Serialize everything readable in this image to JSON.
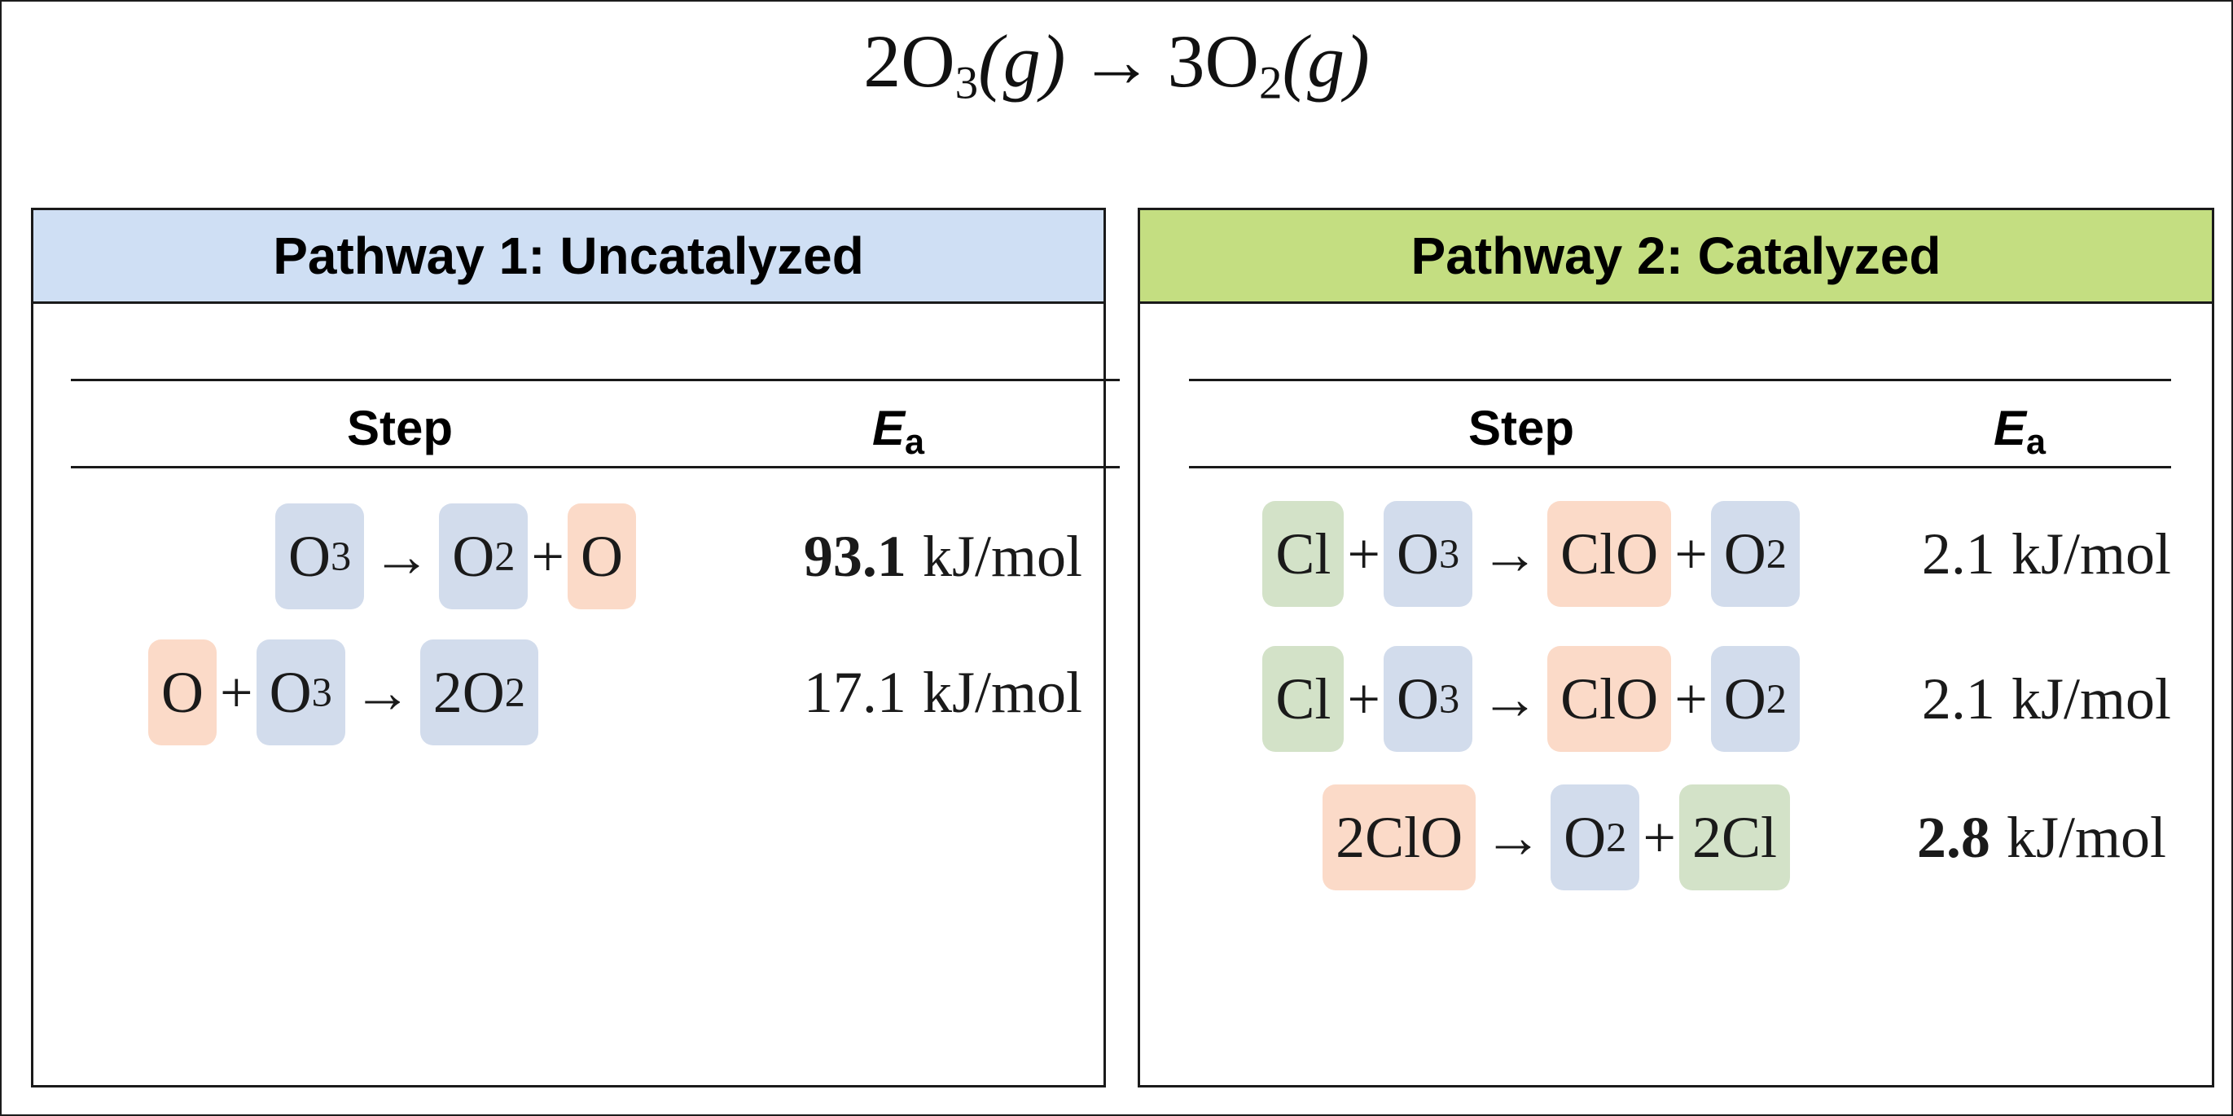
{
  "overall_reaction": {
    "reactant_coef": "2",
    "reactant": "O",
    "reactant_sub": "3",
    "reactant_state": "(g)",
    "arrow": "→",
    "product_coef": "3",
    "product": "O",
    "product_sub": "2",
    "product_state": "(g)"
  },
  "colors": {
    "header_uncatalyzed": "#cfdff4",
    "header_catalyzed": "#c4de81",
    "ozone_species": "#d2dcec",
    "oxygen_species": "#fbdac8",
    "chlorine_species": "#d3e2c8"
  },
  "pathway1": {
    "title": "Pathway 1:  Uncatalyzed",
    "col_step": "Step",
    "col_ea_letter": "E",
    "col_ea_sub": "a",
    "steps": [
      {
        "terms": [
          {
            "text": "O",
            "sub": "3",
            "color": "blue"
          },
          {
            "op": "→"
          },
          {
            "text": "O",
            "sub": "2",
            "color": "blue"
          },
          {
            "op": "+"
          },
          {
            "text": "O",
            "sub": "",
            "color": "orange"
          }
        ],
        "ea_value": "93.1",
        "ea_bold": true,
        "ea_unit": "kJ/mol"
      },
      {
        "terms": [
          {
            "text": "O",
            "sub": "",
            "color": "orange"
          },
          {
            "op": "+"
          },
          {
            "text": "O",
            "sub": "3",
            "color": "blue"
          },
          {
            "op": "→"
          },
          {
            "text": "2O",
            "sub": "2",
            "color": "blue"
          }
        ],
        "ea_value": "17.1",
        "ea_bold": false,
        "ea_unit": "kJ/mol"
      }
    ]
  },
  "pathway2": {
    "title": "Pathway 2:  Catalyzed",
    "col_step": "Step",
    "col_ea_letter": "E",
    "col_ea_sub": "a",
    "steps": [
      {
        "terms": [
          {
            "text": "Cl",
            "sub": "",
            "color": "green"
          },
          {
            "op": "+"
          },
          {
            "text": "O",
            "sub": "3",
            "color": "blue"
          },
          {
            "op": "→"
          },
          {
            "text": "ClO",
            "sub": "",
            "color": "orange"
          },
          {
            "op": "+"
          },
          {
            "text": "O",
            "sub": "2",
            "color": "blue"
          }
        ],
        "ea_value": "2.1",
        "ea_bold": false,
        "ea_unit": "kJ/mol"
      },
      {
        "terms": [
          {
            "text": "Cl",
            "sub": "",
            "color": "green"
          },
          {
            "op": "+"
          },
          {
            "text": "O",
            "sub": "3",
            "color": "blue"
          },
          {
            "op": "→"
          },
          {
            "text": "ClO",
            "sub": "",
            "color": "orange"
          },
          {
            "op": "+"
          },
          {
            "text": "O",
            "sub": "2",
            "color": "blue"
          }
        ],
        "ea_value": "2.1",
        "ea_bold": false,
        "ea_unit": "kJ/mol"
      },
      {
        "terms": [
          {
            "text": "2ClO",
            "sub": "",
            "color": "orange"
          },
          {
            "op": "→"
          },
          {
            "text": "O",
            "sub": "2",
            "color": "blue"
          },
          {
            "op": "+"
          },
          {
            "text": "2Cl",
            "sub": "",
            "color": "green"
          }
        ],
        "ea_value": "2.8",
        "ea_bold": true,
        "ea_unit": "kJ/mol"
      }
    ]
  }
}
